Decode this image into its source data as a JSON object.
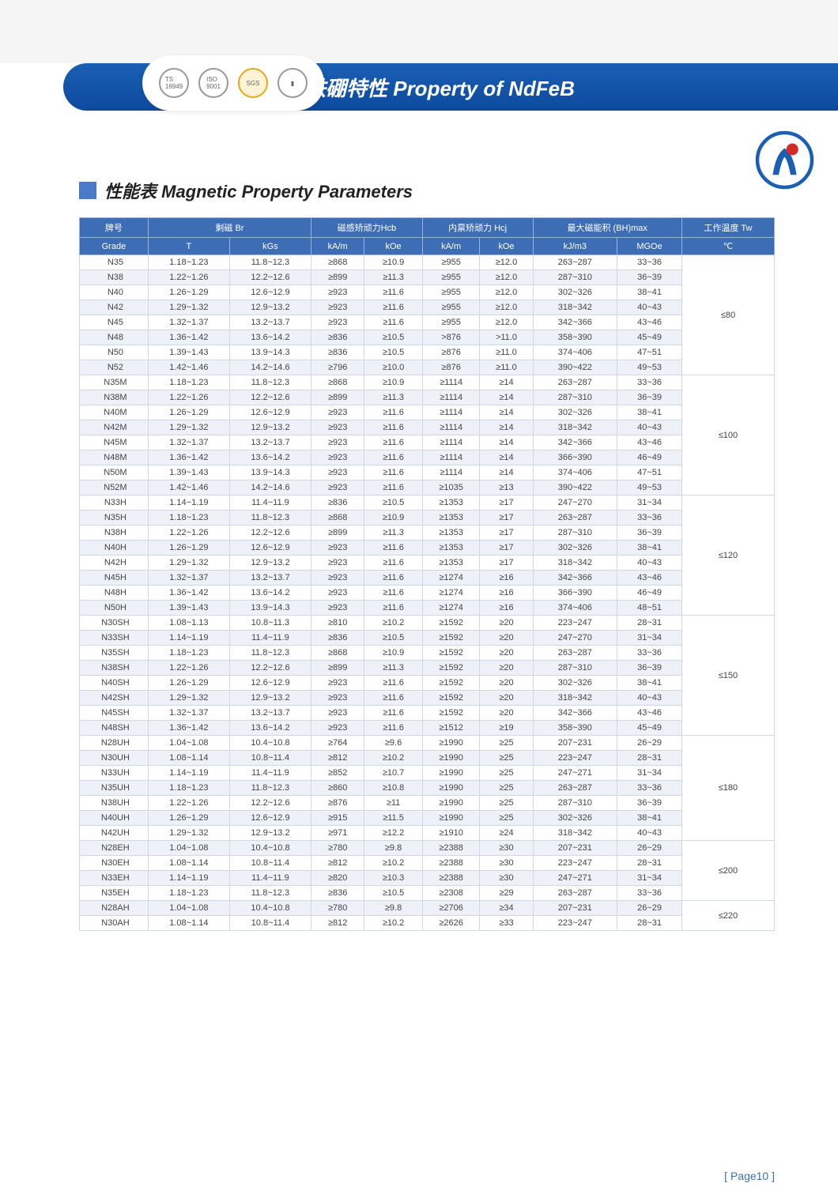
{
  "banner": {
    "title": "钕铁硼特性 Property of NdFeB"
  },
  "section": {
    "title": "性能表 Magnetic Property Parameters"
  },
  "page_number": "[ Page10 ]",
  "headers": {
    "grade_cn": "牌号",
    "grade_en": "Grade",
    "br": "剩磁 Br",
    "br_t": "T",
    "br_kgs": "kGs",
    "hcb": "磁感矫顽力Hcb",
    "hcb_kam": "kA/m",
    "hcb_koe": "kOe",
    "hcj": "内禀矫顽力 Hcj",
    "hcj_kam": "kA/m",
    "hcj_koe": "kOe",
    "bhmax": "最大磁能积 (BH)max",
    "bhmax_kjm3": "kJ/m3",
    "bhmax_mgoe": "MGOe",
    "tw": "工作温度 Tw",
    "tw_c": "℃"
  },
  "groups": [
    {
      "temp": "≤80",
      "rows": [
        [
          "N35",
          "1.18~1.23",
          "11.8~12.3",
          "≥868",
          "≥10.9",
          "≥955",
          "≥12.0",
          "263~287",
          "33~36"
        ],
        [
          "N38",
          "1.22~1.26",
          "12.2~12.6",
          "≥899",
          "≥11.3",
          "≥955",
          "≥12.0",
          "287~310",
          "36~39"
        ],
        [
          "N40",
          "1.26~1.29",
          "12.6~12.9",
          "≥923",
          "≥11.6",
          "≥955",
          "≥12.0",
          "302~326",
          "38~41"
        ],
        [
          "N42",
          "1.29~1.32",
          "12.9~13.2",
          "≥923",
          "≥11.6",
          "≥955",
          "≥12.0",
          "318~342",
          "40~43"
        ],
        [
          "N45",
          "1.32~1.37",
          "13.2~13.7",
          "≥923",
          "≥11.6",
          "≥955",
          "≥12.0",
          "342~366",
          "43~46"
        ],
        [
          "N48",
          "1.36~1.42",
          "13.6~14.2",
          "≥836",
          "≥10.5",
          ">876",
          ">11.0",
          "358~390",
          "45~49"
        ],
        [
          "N50",
          "1.39~1.43",
          "13.9~14.3",
          "≥836",
          "≥10.5",
          "≥876",
          "≥11.0",
          "374~406",
          "47~51"
        ],
        [
          "N52",
          "1.42~1.46",
          "14.2~14.6",
          "≥796",
          "≥10.0",
          "≥876",
          "≥11.0",
          "390~422",
          "49~53"
        ]
      ]
    },
    {
      "temp": "≤100",
      "rows": [
        [
          "N35M",
          "1.18~1.23",
          "11.8~12.3",
          "≥868",
          "≥10.9",
          "≥1114",
          "≥14",
          "263~287",
          "33~36"
        ],
        [
          "N38M",
          "1.22~1.26",
          "12.2~12.6",
          "≥899",
          "≥11.3",
          "≥1114",
          "≥14",
          "287~310",
          "36~39"
        ],
        [
          "N40M",
          "1.26~1.29",
          "12.6~12.9",
          "≥923",
          "≥11.6",
          "≥1114",
          "≥14",
          "302~326",
          "38~41"
        ],
        [
          "N42M",
          "1.29~1.32",
          "12.9~13.2",
          "≥923",
          "≥11.6",
          "≥1114",
          "≥14",
          "318~342",
          "40~43"
        ],
        [
          "N45M",
          "1.32~1.37",
          "13.2~13.7",
          "≥923",
          "≥11.6",
          "≥1114",
          "≥14",
          "342~366",
          "43~46"
        ],
        [
          "N48M",
          "1.36~1.42",
          "13.6~14.2",
          "≥923",
          "≥11.6",
          "≥1114",
          "≥14",
          "366~390",
          "46~49"
        ],
        [
          "N50M",
          "1.39~1.43",
          "13.9~14.3",
          "≥923",
          "≥11.6",
          "≥1114",
          "≥14",
          "374~406",
          "47~51"
        ],
        [
          "N52M",
          "1.42~1.46",
          "14.2~14.6",
          "≥923",
          "≥11.6",
          "≥1035",
          "≥13",
          "390~422",
          "49~53"
        ]
      ]
    },
    {
      "temp": "≤120",
      "rows": [
        [
          "N33H",
          "1.14~1.19",
          "11.4~11.9",
          "≥836",
          "≥10.5",
          "≥1353",
          "≥17",
          "247~270",
          "31~34"
        ],
        [
          "N35H",
          "1.18~1.23",
          "11.8~12.3",
          "≥868",
          "≥10.9",
          "≥1353",
          "≥17",
          "263~287",
          "33~36"
        ],
        [
          "N38H",
          "1.22~1.26",
          "12.2~12.6",
          "≥899",
          "≥11.3",
          "≥1353",
          "≥17",
          "287~310",
          "36~39"
        ],
        [
          "N40H",
          "1.26~1.29",
          "12.6~12.9",
          "≥923",
          "≥11.6",
          "≥1353",
          "≥17",
          "302~326",
          "38~41"
        ],
        [
          "N42H",
          "1.29~1.32",
          "12.9~13.2",
          "≥923",
          "≥11.6",
          "≥1353",
          "≥17",
          "318~342",
          "40~43"
        ],
        [
          "N45H",
          "1.32~1.37",
          "13.2~13.7",
          "≥923",
          "≥11.6",
          "≥1274",
          "≥16",
          "342~366",
          "43~46"
        ],
        [
          "N48H",
          "1.36~1.42",
          "13.6~14.2",
          "≥923",
          "≥11.6",
          "≥1274",
          "≥16",
          "366~390",
          "46~49"
        ],
        [
          "N50H",
          "1.39~1.43",
          "13.9~14.3",
          "≥923",
          "≥11.6",
          "≥1274",
          "≥16",
          "374~406",
          "48~51"
        ]
      ]
    },
    {
      "temp": "≤150",
      "rows": [
        [
          "N30SH",
          "1.08~1.13",
          "10.8~11.3",
          "≥810",
          "≥10.2",
          "≥1592",
          "≥20",
          "223~247",
          "28~31"
        ],
        [
          "N33SH",
          "1.14~1.19",
          "11.4~11.9",
          "≥836",
          "≥10.5",
          "≥1592",
          "≥20",
          "247~270",
          "31~34"
        ],
        [
          "N35SH",
          "1.18~1.23",
          "11.8~12.3",
          "≥868",
          "≥10.9",
          "≥1592",
          "≥20",
          "263~287",
          "33~36"
        ],
        [
          "N38SH",
          "1.22~1.26",
          "12.2~12.6",
          "≥899",
          "≥11.3",
          "≥1592",
          "≥20",
          "287~310",
          "36~39"
        ],
        [
          "N40SH",
          "1.26~1.29",
          "12.6~12.9",
          "≥923",
          "≥11.6",
          "≥1592",
          "≥20",
          "302~326",
          "38~41"
        ],
        [
          "N42SH",
          "1.29~1.32",
          "12.9~13.2",
          "≥923",
          "≥11.6",
          "≥1592",
          "≥20",
          "318~342",
          "40~43"
        ],
        [
          "N45SH",
          "1.32~1.37",
          "13.2~13.7",
          "≥923",
          "≥11.6",
          "≥1592",
          "≥20",
          "342~366",
          "43~46"
        ],
        [
          "N48SH",
          "1.36~1.42",
          "13.6~14.2",
          "≥923",
          "≥11.6",
          "≥1512",
          "≥19",
          "358~390",
          "45~49"
        ]
      ]
    },
    {
      "temp": "≤180",
      "rows": [
        [
          "N28UH",
          "1.04~1.08",
          "10.4~10.8",
          "≥764",
          "≥9.6",
          "≥1990",
          "≥25",
          "207~231",
          "26~29"
        ],
        [
          "N30UH",
          "1.08~1.14",
          "10.8~11.4",
          "≥812",
          "≥10.2",
          "≥1990",
          "≥25",
          "223~247",
          "28~31"
        ],
        [
          "N33UH",
          "1.14~1.19",
          "11.4~11.9",
          "≥852",
          "≥10.7",
          "≥1990",
          "≥25",
          "247~271",
          "31~34"
        ],
        [
          "N35UH",
          "1.18~1.23",
          "11.8~12.3",
          "≥860",
          "≥10.8",
          "≥1990",
          "≥25",
          "263~287",
          "33~36"
        ],
        [
          "N38UH",
          "1.22~1.26",
          "12.2~12.6",
          "≥876",
          "≥11",
          "≥1990",
          "≥25",
          "287~310",
          "36~39"
        ],
        [
          "N40UH",
          "1.26~1.29",
          "12.6~12.9",
          "≥915",
          "≥11.5",
          "≥1990",
          "≥25",
          "302~326",
          "38~41"
        ],
        [
          "N42UH",
          "1.29~1.32",
          "12.9~13.2",
          "≥971",
          "≥12.2",
          "≥1910",
          "≥24",
          "318~342",
          "40~43"
        ]
      ]
    },
    {
      "temp": "≤200",
      "rows": [
        [
          "N28EH",
          "1.04~1.08",
          "10.4~10.8",
          "≥780",
          "≥9.8",
          "≥2388",
          "≥30",
          "207~231",
          "26~29"
        ],
        [
          "N30EH",
          "1.08~1.14",
          "10.8~11.4",
          "≥812",
          "≥10.2",
          "≥2388",
          "≥30",
          "223~247",
          "28~31"
        ],
        [
          "N33EH",
          "1.14~1.19",
          "11.4~11.9",
          "≥820",
          "≥10.3",
          "≥2388",
          "≥30",
          "247~271",
          "31~34"
        ],
        [
          "N35EH",
          "1.18~1.23",
          "11.8~12.3",
          "≥836",
          "≥10.5",
          "≥2308",
          "≥29",
          "263~287",
          "33~36"
        ]
      ]
    },
    {
      "temp": "≤220",
      "rows": [
        [
          "N28AH",
          "1.04~1.08",
          "10.4~10.8",
          "≥780",
          "≥9.8",
          "≥2706",
          "≥34",
          "207~231",
          "26~29"
        ],
        [
          "N30AH",
          "1.08~1.14",
          "10.8~11.4",
          "≥812",
          "≥10.2",
          "≥2626",
          "≥33",
          "223~247",
          "28~31"
        ]
      ]
    }
  ]
}
